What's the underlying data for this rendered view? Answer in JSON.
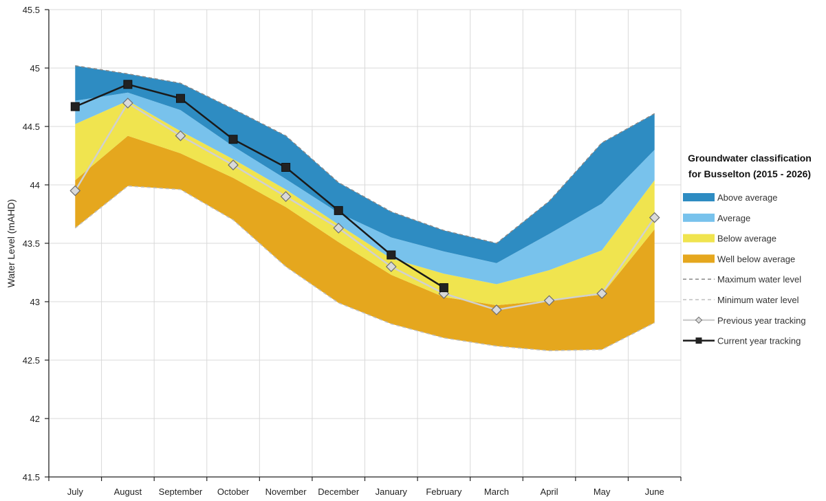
{
  "chart_data": {
    "type": "area",
    "title": "",
    "xlabel": "",
    "ylabel": "Water Level (mAHD)",
    "ylim": [
      41.5,
      45.5
    ],
    "ytick_step": 0.5,
    "yticks": [
      "41.5",
      "42",
      "42.5",
      "43",
      "43.5",
      "44",
      "44.5",
      "45",
      "45.5"
    ],
    "categories": [
      "July",
      "August",
      "September",
      "October",
      "November",
      "December",
      "January",
      "February",
      "March",
      "April",
      "May",
      "June"
    ],
    "grid": true,
    "legend": {
      "title_line1": "Groundwater classification",
      "title_line2": "for Busselton (2015 - 2026)",
      "placement": "right"
    },
    "bands": [
      {
        "name": "Well below average",
        "color": "#e5a71e",
        "lower": [
          43.63,
          43.99,
          43.96,
          43.7,
          43.3,
          42.99,
          42.81,
          42.69,
          42.62,
          42.58,
          42.59,
          42.82
        ],
        "upper": [
          44.04,
          44.42,
          44.27,
          44.06,
          43.81,
          43.51,
          43.23,
          43.04,
          42.97,
          43.01,
          43.06,
          43.62
        ]
      },
      {
        "name": "Below average",
        "color": "#f0e44f",
        "lower": [
          44.04,
          44.42,
          44.27,
          44.06,
          43.81,
          43.51,
          43.23,
          43.04,
          42.97,
          43.01,
          43.06,
          43.62
        ],
        "upper": [
          44.52,
          44.72,
          44.46,
          44.22,
          43.96,
          43.66,
          43.37,
          43.24,
          43.15,
          43.27,
          43.44,
          44.04
        ]
      },
      {
        "name": "Average",
        "color": "#78c2ec",
        "lower": [
          44.52,
          44.72,
          44.46,
          44.22,
          43.96,
          43.66,
          43.37,
          43.24,
          43.15,
          43.27,
          43.44,
          44.04
        ],
        "upper": [
          44.72,
          44.79,
          44.64,
          44.33,
          44.05,
          43.76,
          43.55,
          43.43,
          43.33,
          43.58,
          43.84,
          44.3
        ]
      },
      {
        "name": "Above average",
        "color": "#2e8cc2",
        "lower": [
          44.72,
          44.79,
          44.64,
          44.33,
          44.05,
          43.76,
          43.55,
          43.43,
          43.33,
          43.58,
          43.84,
          44.3
        ],
        "upper": [
          45.02,
          44.95,
          44.87,
          44.65,
          44.42,
          44.02,
          43.77,
          43.61,
          43.5,
          43.86,
          44.36,
          44.61
        ]
      }
    ],
    "series": [
      {
        "name": "Maximum water level",
        "style": "dashed",
        "color": "#888888",
        "values": [
          45.02,
          44.95,
          44.87,
          44.65,
          44.42,
          44.02,
          43.77,
          43.61,
          43.5,
          43.86,
          44.36,
          44.61
        ]
      },
      {
        "name": "Minimum water level",
        "style": "dashed",
        "color": "#bfbfbf",
        "values": [
          43.63,
          43.99,
          43.96,
          43.7,
          43.3,
          42.99,
          42.81,
          42.69,
          42.62,
          42.58,
          42.59,
          42.82
        ]
      },
      {
        "name": "Previous year tracking",
        "style": "line-diamond",
        "color": "#d0d0d0",
        "values": [
          43.95,
          44.7,
          44.42,
          44.17,
          43.9,
          43.63,
          43.3,
          43.07,
          42.93,
          43.01,
          43.07,
          43.72
        ]
      },
      {
        "name": "Current year tracking",
        "style": "line-square",
        "color": "#1a1a1a",
        "values": [
          44.67,
          44.86,
          44.74,
          44.39,
          44.15,
          43.78,
          43.4,
          43.12,
          null,
          null,
          null,
          null
        ]
      }
    ]
  }
}
